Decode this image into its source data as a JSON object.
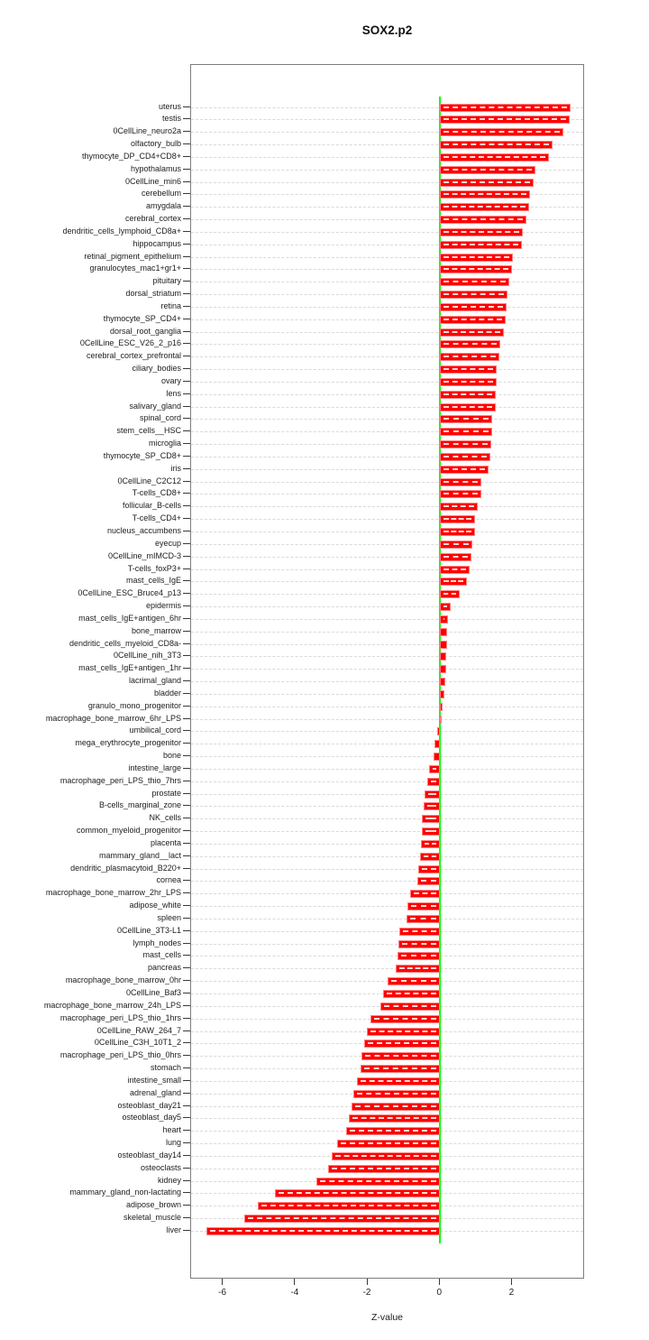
{
  "title": "SOX2.p2",
  "xlabel": "Z-value",
  "colors": {
    "bar": "#ff0000",
    "bar_inner_dash": "#ffffff",
    "zero_line": "#00ff00",
    "gridline": "#d9d9d9",
    "frame": "#7d7d7d",
    "text": "#1c1c1c"
  },
  "chart_data": {
    "type": "bar",
    "orientation": "horizontal",
    "title": "SOX2.p2",
    "xlabel": "Z-value",
    "ylabel": "",
    "xlim": [
      -6.89,
      4.01
    ],
    "xticks": [
      -6,
      -4,
      -2,
      0,
      2
    ],
    "grid": true,
    "zero_reference_line": 0,
    "sort": "descending",
    "categories": [
      "uterus",
      "testis",
      "0CellLine_neuro2a",
      "olfactory_bulb",
      "thymocyte_DP_CD4+CD8+",
      "hypothalamus",
      "0CellLine_min6",
      "cerebellum",
      "amygdala",
      "cerebral_cortex",
      "dendritic_cells_lymphoid_CD8a+",
      "hippocampus",
      "retinal_pigment_epithelium",
      "granulocytes_mac1+gr1+",
      "pituitary",
      "dorsal_striatum",
      "retina",
      "thymocyte_SP_CD4+",
      "dorsal_root_ganglia",
      "0CellLine_ESC_V26_2_p16",
      "cerebral_cortex_prefrontal",
      "ciliary_bodies",
      "ovary",
      "lens",
      "salivary_gland",
      "spinal_cord",
      "stem_cells__HSC",
      "microglia",
      "thymocyte_SP_CD8+",
      "iris",
      "0CellLine_C2C12",
      "T-cells_CD8+",
      "follicular_B-cells",
      "T-cells_CD4+",
      "nucleus_accumbens",
      "eyecup",
      "0CellLine_mIMCD-3",
      "T-cells_foxP3+",
      "mast_cells_IgE",
      "0CellLine_ESC_Bruce4_p13",
      "epidermis",
      "mast_cells_IgE+antigen_6hr",
      "bone_marrow",
      "dendritic_cells_myeloid_CD8a-",
      "0CellLine_nih_3T3",
      "mast_cells_IgE+antigen_1hr",
      "lacrimal_gland",
      "bladder",
      "granulo_mono_progenitor",
      "macrophage_bone_marrow_6hr_LPS",
      "umbilical_cord",
      "mega_erythrocyte_progenitor",
      "bone",
      "intestine_large",
      "macrophage_peri_LPS_thio_7hrs",
      "prostate",
      "B-cells_marginal_zone",
      "NK_cells",
      "common_myeloid_progenitor",
      "placenta",
      "mammary_gland__lact",
      "dendritic_plasmacytoid_B220+",
      "cornea",
      "macrophage_bone_marrow_2hr_LPS",
      "adipose_white",
      "spleen",
      "0CellLine_3T3-L1",
      "lymph_nodes",
      "mast_cells",
      "pancreas",
      "macrophage_bone_marrow_0hr",
      "0CellLine_Baf3",
      "macrophage_bone_marrow_24h_LPS",
      "macrophage_peri_LPS_thio_1hrs",
      "0CellLine_RAW_264_7",
      "0CellLine_C3H_10T1_2",
      "macrophage_peri_LPS_thio_0hrs",
      "stomach",
      "intestine_small",
      "adrenal_gland",
      "osteoblast_day21",
      "osteoblast_day5",
      "heart",
      "lung",
      "osteoblast_day14",
      "osteoclasts",
      "kidney",
      "mammary_gland_non-lactating",
      "adipose_brown",
      "skeletal_muscle",
      "liver"
    ],
    "values": [
      3.62,
      3.59,
      3.41,
      3.12,
      3.01,
      2.64,
      2.59,
      2.49,
      2.46,
      2.39,
      2.28,
      2.26,
      2.02,
      1.98,
      1.91,
      1.86,
      1.85,
      1.81,
      1.76,
      1.66,
      1.65,
      1.56,
      1.56,
      1.55,
      1.53,
      1.45,
      1.44,
      1.41,
      1.4,
      1.34,
      1.15,
      1.14,
      1.05,
      0.97,
      0.96,
      0.89,
      0.86,
      0.83,
      0.74,
      0.54,
      0.29,
      0.22,
      0.2,
      0.19,
      0.17,
      0.16,
      0.14,
      0.12,
      0.06,
      0.01,
      -0.09,
      -0.16,
      -0.19,
      -0.3,
      -0.35,
      -0.44,
      -0.45,
      -0.5,
      -0.51,
      -0.52,
      -0.56,
      -0.6,
      -0.63,
      -0.83,
      -0.9,
      -0.93,
      -1.12,
      -1.16,
      -1.17,
      -1.22,
      -1.46,
      -1.58,
      -1.64,
      -1.92,
      -2.03,
      -2.1,
      -2.18,
      -2.19,
      -2.29,
      -2.4,
      -2.46,
      -2.53,
      -2.59,
      -2.84,
      -2.99,
      -3.11,
      -3.43,
      -4.56,
      -5.04,
      -5.42,
      -6.47
    ]
  }
}
